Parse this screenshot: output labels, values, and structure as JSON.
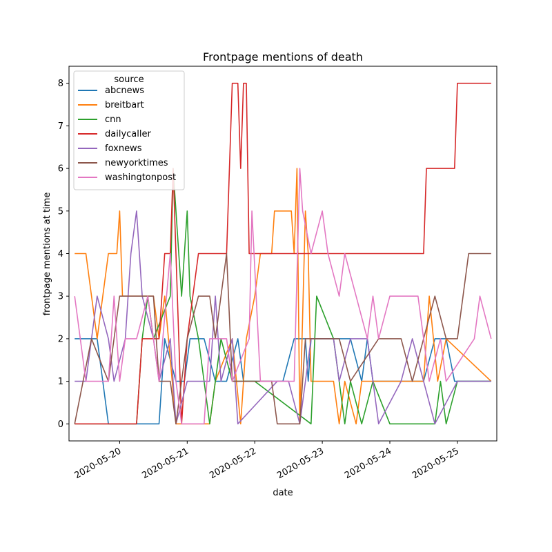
{
  "chart_data": {
    "type": "line",
    "title": "Frontpage mentions of death",
    "xlabel": "date",
    "ylabel": "frontpage mentions at time",
    "x_ticks": [
      "2020-05-20",
      "2020-05-21",
      "2020-05-22",
      "2020-05-23",
      "2020-05-24",
      "2020-05-25"
    ],
    "y_ticks": [
      0,
      1,
      2,
      3,
      4,
      5,
      6,
      7,
      8
    ],
    "xlim": [
      "2020-05-19 06:00",
      "2020-05-25 14:00"
    ],
    "ylim": [
      -0.4,
      8.4
    ],
    "legend": {
      "title": "source",
      "position": "top-left"
    },
    "series": [
      {
        "name": "abcnews",
        "color": "#1f77b4",
        "points": [
          [
            "2020-05-19 08:00",
            2
          ],
          [
            "2020-05-19 11:00",
            2
          ],
          [
            "2020-05-19 16:00",
            2
          ],
          [
            "2020-05-19 20:00",
            0
          ],
          [
            "2020-05-20 14:00",
            0
          ],
          [
            "2020-05-20 16:00",
            2
          ],
          [
            "2020-05-20 20:00",
            1
          ],
          [
            "2020-05-20 23:00",
            1
          ],
          [
            "2020-05-21 01:00",
            2
          ],
          [
            "2020-05-21 06:00",
            2
          ],
          [
            "2020-05-21 10:00",
            1
          ],
          [
            "2020-05-21 14:00",
            1
          ],
          [
            "2020-05-21 18:00",
            2
          ],
          [
            "2020-05-21 20:00",
            1
          ],
          [
            "2020-05-22 10:00",
            1
          ],
          [
            "2020-05-22 14:00",
            2
          ],
          [
            "2020-05-22 18:00",
            2
          ],
          [
            "2020-05-22 19:00",
            1
          ],
          [
            "2020-05-22 20:00",
            2
          ],
          [
            "2020-05-23 10:00",
            2
          ],
          [
            "2020-05-23 14:00",
            1
          ],
          [
            "2020-05-23 16:00",
            2
          ],
          [
            "2020-05-23 18:00",
            1
          ],
          [
            "2020-05-24 12:00",
            1
          ],
          [
            "2020-05-24 16:00",
            2
          ],
          [
            "2020-05-24 20:00",
            2
          ],
          [
            "2020-05-24 23:00",
            1
          ],
          [
            "2020-05-25 12:00",
            1
          ]
        ]
      },
      {
        "name": "breitbart",
        "color": "#ff7f0e",
        "points": [
          [
            "2020-05-19 08:00",
            4
          ],
          [
            "2020-05-19 12:00",
            4
          ],
          [
            "2020-05-19 16:00",
            2
          ],
          [
            "2020-05-19 20:00",
            4
          ],
          [
            "2020-05-19 23:00",
            4
          ],
          [
            "2020-05-20 00:00",
            5
          ],
          [
            "2020-05-20 01:00",
            3
          ],
          [
            "2020-05-20 12:00",
            3
          ],
          [
            "2020-05-20 14:00",
            2
          ],
          [
            "2020-05-20 16:00",
            3
          ],
          [
            "2020-05-20 20:00",
            0
          ],
          [
            "2020-05-21 08:00",
            0
          ],
          [
            "2020-05-21 10:00",
            1
          ],
          [
            "2020-05-21 16:00",
            2
          ],
          [
            "2020-05-21 19:00",
            0
          ],
          [
            "2020-05-21 21:00",
            2
          ],
          [
            "2020-05-22 00:00",
            3
          ],
          [
            "2020-05-22 02:00",
            4
          ],
          [
            "2020-05-22 06:00",
            4
          ],
          [
            "2020-05-22 07:00",
            5
          ],
          [
            "2020-05-22 13:00",
            5
          ],
          [
            "2020-05-22 14:00",
            4
          ],
          [
            "2020-05-22 15:00",
            6
          ],
          [
            "2020-05-22 16:00",
            0
          ],
          [
            "2020-05-22 18:00",
            5
          ],
          [
            "2020-05-22 19:00",
            4
          ],
          [
            "2020-05-22 20:00",
            1
          ],
          [
            "2020-05-23 04:00",
            1
          ],
          [
            "2020-05-23 06:00",
            0
          ],
          [
            "2020-05-23 08:00",
            1
          ],
          [
            "2020-05-23 12:00",
            0
          ],
          [
            "2020-05-23 14:00",
            1
          ],
          [
            "2020-05-24 12:00",
            1
          ],
          [
            "2020-05-24 14:00",
            3
          ],
          [
            "2020-05-24 17:00",
            1
          ],
          [
            "2020-05-24 20:00",
            2
          ],
          [
            "2020-05-25 12:00",
            1
          ]
        ]
      },
      {
        "name": "cnn",
        "color": "#2ca02c",
        "points": [
          [
            "2020-05-19 08:00",
            0
          ],
          [
            "2020-05-20 06:00",
            0
          ],
          [
            "2020-05-20 08:00",
            2
          ],
          [
            "2020-05-20 10:00",
            3
          ],
          [
            "2020-05-20 12:00",
            2
          ],
          [
            "2020-05-20 18:00",
            3
          ],
          [
            "2020-05-20 19:00",
            6
          ],
          [
            "2020-05-20 22:00",
            3
          ],
          [
            "2020-05-21 00:00",
            5
          ],
          [
            "2020-05-21 01:00",
            3
          ],
          [
            "2020-05-21 04:00",
            2
          ],
          [
            "2020-05-21 08:00",
            0
          ],
          [
            "2020-05-21 12:00",
            2
          ],
          [
            "2020-05-21 16:00",
            1
          ],
          [
            "2020-05-22 00:00",
            1
          ],
          [
            "2020-05-22 20:00",
            0
          ],
          [
            "2020-05-22 22:00",
            3
          ],
          [
            "2020-05-23 04:00",
            2
          ],
          [
            "2020-05-23 08:00",
            0
          ],
          [
            "2020-05-23 10:00",
            1
          ],
          [
            "2020-05-23 14:00",
            0
          ],
          [
            "2020-05-23 18:00",
            1
          ],
          [
            "2020-05-24 00:00",
            0
          ],
          [
            "2020-05-24 16:00",
            0
          ],
          [
            "2020-05-24 18:00",
            1
          ],
          [
            "2020-05-24 20:00",
            0
          ],
          [
            "2020-05-25 00:00",
            1
          ],
          [
            "2020-05-25 12:00",
            1
          ]
        ]
      },
      {
        "name": "dailycaller",
        "color": "#d62728",
        "points": [
          [
            "2020-05-19 08:00",
            0
          ],
          [
            "2020-05-20 06:00",
            0
          ],
          [
            "2020-05-20 08:00",
            2
          ],
          [
            "2020-05-20 14:00",
            2
          ],
          [
            "2020-05-20 16:00",
            4
          ],
          [
            "2020-05-20 18:00",
            4
          ],
          [
            "2020-05-20 19:00",
            6
          ],
          [
            "2020-05-20 20:00",
            4
          ],
          [
            "2020-05-20 22:00",
            0
          ],
          [
            "2020-05-21 00:00",
            2
          ],
          [
            "2020-05-21 04:00",
            4
          ],
          [
            "2020-05-21 14:00",
            4
          ],
          [
            "2020-05-21 15:00",
            6
          ],
          [
            "2020-05-21 16:00",
            8
          ],
          [
            "2020-05-21 18:00",
            8
          ],
          [
            "2020-05-21 19:00",
            6
          ],
          [
            "2020-05-21 20:00",
            8
          ],
          [
            "2020-05-21 21:00",
            8
          ],
          [
            "2020-05-21 22:00",
            4
          ],
          [
            "2020-05-22 12:00",
            4
          ],
          [
            "2020-05-24 12:00",
            4
          ],
          [
            "2020-05-24 13:00",
            6
          ],
          [
            "2020-05-24 23:00",
            6
          ],
          [
            "2020-05-25 00:00",
            8
          ],
          [
            "2020-05-25 12:00",
            8
          ]
        ]
      },
      {
        "name": "foxnews",
        "color": "#9467bd",
        "points": [
          [
            "2020-05-19 08:00",
            1
          ],
          [
            "2020-05-19 12:00",
            1
          ],
          [
            "2020-05-19 16:00",
            3
          ],
          [
            "2020-05-19 20:00",
            2
          ],
          [
            "2020-05-19 22:00",
            1
          ],
          [
            "2020-05-20 02:00",
            2
          ],
          [
            "2020-05-20 04:00",
            4
          ],
          [
            "2020-05-20 06:00",
            5
          ],
          [
            "2020-05-20 08:00",
            3
          ],
          [
            "2020-05-20 12:00",
            2
          ],
          [
            "2020-05-20 14:00",
            1
          ],
          [
            "2020-05-20 18:00",
            2
          ],
          [
            "2020-05-20 20:00",
            0
          ],
          [
            "2020-05-21 00:00",
            1
          ],
          [
            "2020-05-21 08:00",
            1
          ],
          [
            "2020-05-21 10:00",
            3
          ],
          [
            "2020-05-21 12:00",
            1
          ],
          [
            "2020-05-21 16:00",
            2
          ],
          [
            "2020-05-21 18:00",
            0
          ],
          [
            "2020-05-22 08:00",
            1
          ],
          [
            "2020-05-22 12:00",
            1
          ],
          [
            "2020-05-22 16:00",
            0
          ],
          [
            "2020-05-22 20:00",
            2
          ],
          [
            "2020-05-23 04:00",
            2
          ],
          [
            "2020-05-23 06:00",
            1
          ],
          [
            "2020-05-23 10:00",
            2
          ],
          [
            "2020-05-23 16:00",
            2
          ],
          [
            "2020-05-23 20:00",
            0
          ],
          [
            "2020-05-24 04:00",
            1
          ],
          [
            "2020-05-24 08:00",
            2
          ],
          [
            "2020-05-24 12:00",
            1
          ],
          [
            "2020-05-24 16:00",
            0
          ],
          [
            "2020-05-25 00:00",
            1
          ],
          [
            "2020-05-25 12:00",
            1
          ]
        ]
      },
      {
        "name": "newyorktimes",
        "color": "#8c564b",
        "points": [
          [
            "2020-05-19 08:00",
            0
          ],
          [
            "2020-05-19 14:00",
            2
          ],
          [
            "2020-05-19 20:00",
            1
          ],
          [
            "2020-05-20 00:00",
            3
          ],
          [
            "2020-05-20 12:00",
            3
          ],
          [
            "2020-05-20 14:00",
            1
          ],
          [
            "2020-05-20 18:00",
            1
          ],
          [
            "2020-05-20 20:00",
            0
          ],
          [
            "2020-05-21 00:00",
            2
          ],
          [
            "2020-05-21 04:00",
            3
          ],
          [
            "2020-05-21 08:00",
            3
          ],
          [
            "2020-05-21 10:00",
            2
          ],
          [
            "2020-05-21 14:00",
            4
          ],
          [
            "2020-05-21 16:00",
            1
          ],
          [
            "2020-05-22 06:00",
            1
          ],
          [
            "2020-05-22 08:00",
            0
          ],
          [
            "2020-05-22 16:00",
            0
          ],
          [
            "2020-05-22 18:00",
            2
          ],
          [
            "2020-05-23 06:00",
            2
          ],
          [
            "2020-05-23 10:00",
            1
          ],
          [
            "2020-05-23 20:00",
            2
          ],
          [
            "2020-05-24 04:00",
            2
          ],
          [
            "2020-05-24 08:00",
            1
          ],
          [
            "2020-05-24 12:00",
            2
          ],
          [
            "2020-05-24 16:00",
            3
          ],
          [
            "2020-05-24 20:00",
            2
          ],
          [
            "2020-05-25 00:00",
            2
          ],
          [
            "2020-05-25 04:00",
            4
          ],
          [
            "2020-05-25 12:00",
            4
          ]
        ]
      },
      {
        "name": "washingtonpost",
        "color": "#e377c2",
        "points": [
          [
            "2020-05-19 08:00",
            3
          ],
          [
            "2020-05-19 12:00",
            1
          ],
          [
            "2020-05-19 20:00",
            1
          ],
          [
            "2020-05-19 22:00",
            3
          ],
          [
            "2020-05-20 00:00",
            1
          ],
          [
            "2020-05-20 02:00",
            2
          ],
          [
            "2020-05-20 06:00",
            2
          ],
          [
            "2020-05-20 10:00",
            3
          ],
          [
            "2020-05-20 14:00",
            1
          ],
          [
            "2020-05-20 18:00",
            4
          ],
          [
            "2020-05-20 20:00",
            1
          ],
          [
            "2020-05-20 22:00",
            0
          ],
          [
            "2020-05-21 06:00",
            0
          ],
          [
            "2020-05-21 08:00",
            2
          ],
          [
            "2020-05-21 14:00",
            2
          ],
          [
            "2020-05-21 16:00",
            1
          ],
          [
            "2020-05-21 22:00",
            2
          ],
          [
            "2020-05-21 23:00",
            5
          ],
          [
            "2020-05-22 02:00",
            1
          ],
          [
            "2020-05-22 14:00",
            1
          ],
          [
            "2020-05-22 16:00",
            6
          ],
          [
            "2020-05-22 17:00",
            5
          ],
          [
            "2020-05-22 20:00",
            4
          ],
          [
            "2020-05-23 00:00",
            5
          ],
          [
            "2020-05-23 02:00",
            4
          ],
          [
            "2020-05-23 06:00",
            3
          ],
          [
            "2020-05-23 08:00",
            4
          ],
          [
            "2020-05-23 12:00",
            3
          ],
          [
            "2020-05-23 16:00",
            2
          ],
          [
            "2020-05-23 18:00",
            3
          ],
          [
            "2020-05-23 20:00",
            2
          ],
          [
            "2020-05-24 00:00",
            3
          ],
          [
            "2020-05-24 10:00",
            3
          ],
          [
            "2020-05-24 14:00",
            1
          ],
          [
            "2020-05-24 18:00",
            2
          ],
          [
            "2020-05-24 20:00",
            1
          ],
          [
            "2020-05-25 06:00",
            2
          ],
          [
            "2020-05-25 08:00",
            3
          ],
          [
            "2020-05-25 12:00",
            2
          ]
        ]
      }
    ]
  }
}
